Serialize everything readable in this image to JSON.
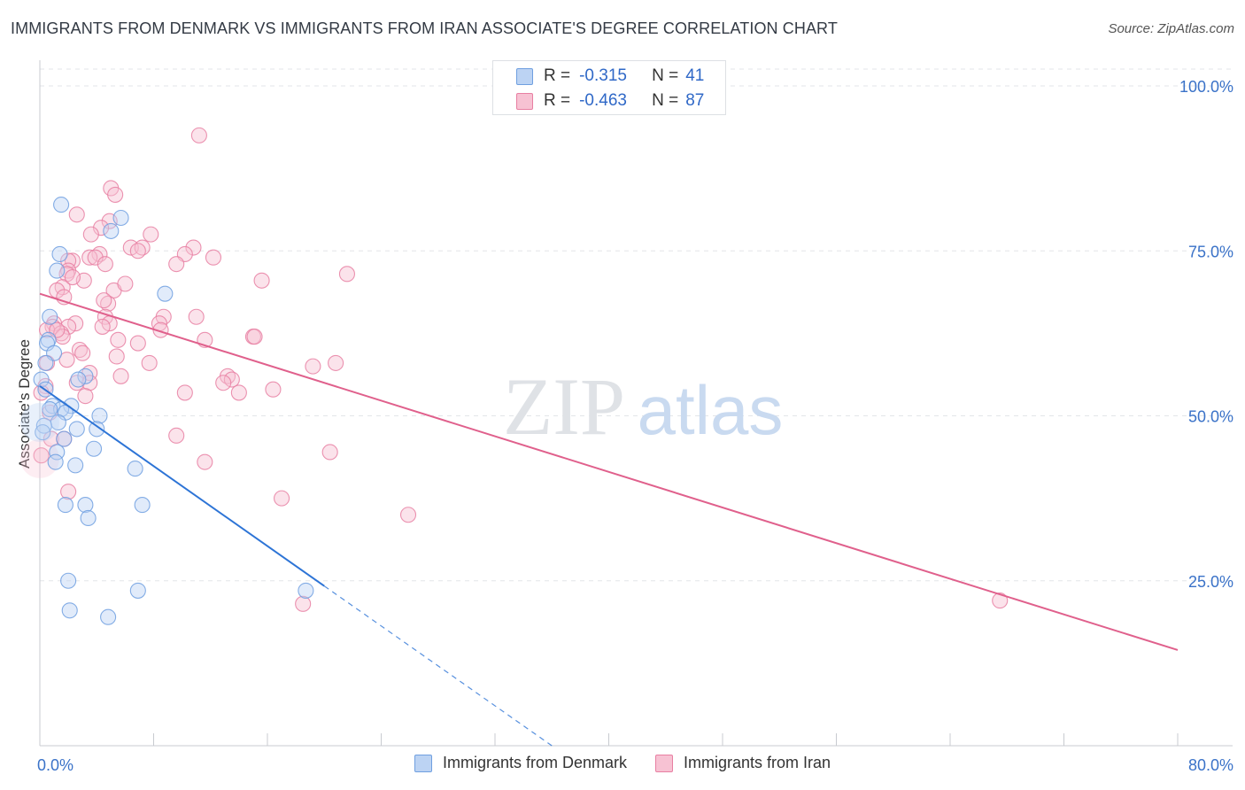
{
  "header": {
    "title": "IMMIGRANTS FROM DENMARK VS IMMIGRANTS FROM IRAN ASSOCIATE'S DEGREE CORRELATION CHART",
    "source": "Source: ZipAtlas.com"
  },
  "watermark": {
    "zip": "ZIP",
    "atlas": "atlas"
  },
  "legend_top": {
    "r_label": "R =",
    "n_label": "N =",
    "series": [
      {
        "r": "-0.315",
        "n": "41"
      },
      {
        "r": "-0.463",
        "n": "87"
      }
    ]
  },
  "legend_bottom": {
    "items": [
      "Immigrants from Denmark",
      "Immigrants from Iran"
    ]
  },
  "chart_data": {
    "type": "scatter",
    "title": "IMMIGRANTS FROM DENMARK VS IMMIGRANTS FROM IRAN ASSOCIATE'S DEGREE CORRELATION CHART",
    "xlabel": "",
    "ylabel": "Associate's Degree",
    "xlim": [
      0,
      80
    ],
    "ylim": [
      0,
      102
    ],
    "x_tick_labels": [
      "0.0%",
      "80.0%"
    ],
    "y_ticks": [
      25,
      50,
      75,
      100
    ],
    "y_tick_labels": [
      "25.0%",
      "50.0%",
      "75.0%",
      "100.0%"
    ],
    "grid": true,
    "legend_position": "top-center",
    "colors": {
      "denmark": "#6f9fe0",
      "denmark_fill": "#bcd3f3",
      "iran": "#e87fa2",
      "iran_fill": "#f7c2d3",
      "denmark_line": "#2d74d6",
      "iran_line": "#e0608c",
      "tick_label": "#3a72c8"
    },
    "series": [
      {
        "name": "Immigrants from Denmark",
        "r": -0.315,
        "n": 41,
        "trend": {
          "x0": 0,
          "y0": 54.5,
          "x1": 20,
          "y1": 24.2,
          "dashed_to_x": 36,
          "dashed_to_y": 0
        },
        "points": [
          [
            1.5,
            82.0
          ],
          [
            5.7,
            80.0
          ],
          [
            5.0,
            78.0
          ],
          [
            1.4,
            74.5
          ],
          [
            1.2,
            72.0
          ],
          [
            8.8,
            68.5
          ],
          [
            0.7,
            65.0
          ],
          [
            0.6,
            61.5
          ],
          [
            0.5,
            61.0
          ],
          [
            1.0,
            59.5
          ],
          [
            0.4,
            58.0
          ],
          [
            3.2,
            56.0
          ],
          [
            2.7,
            55.5
          ],
          [
            0.1,
            55.5
          ],
          [
            0.4,
            54.0
          ],
          [
            0.9,
            51.5
          ],
          [
            2.2,
            51.5
          ],
          [
            1.5,
            51.0
          ],
          [
            0.7,
            51.0
          ],
          [
            1.8,
            50.5
          ],
          [
            4.2,
            50.0
          ],
          [
            1.3,
            49.0
          ],
          [
            0.3,
            48.5
          ],
          [
            2.6,
            48.0
          ],
          [
            4.0,
            48.0
          ],
          [
            0.2,
            47.5
          ],
          [
            1.7,
            46.5
          ],
          [
            3.8,
            45.0
          ],
          [
            1.2,
            44.5
          ],
          [
            1.1,
            43.0
          ],
          [
            2.5,
            42.5
          ],
          [
            6.7,
            42.0
          ],
          [
            1.8,
            36.5
          ],
          [
            7.2,
            36.5
          ],
          [
            3.2,
            36.5
          ],
          [
            3.4,
            34.5
          ],
          [
            2.0,
            25.0
          ],
          [
            6.9,
            23.5
          ],
          [
            18.7,
            23.5
          ],
          [
            2.1,
            20.5
          ],
          [
            4.8,
            19.5
          ]
        ]
      },
      {
        "name": "Immigrants from Iran",
        "r": -0.463,
        "n": 87,
        "trend": {
          "x0": 0,
          "y0": 68.5,
          "x1": 80,
          "y1": 14.5
        },
        "points": [
          [
            11.2,
            92.5
          ],
          [
            5.0,
            84.5
          ],
          [
            5.3,
            83.5
          ],
          [
            2.6,
            80.5
          ],
          [
            4.9,
            79.5
          ],
          [
            4.3,
            78.5
          ],
          [
            3.6,
            77.5
          ],
          [
            7.8,
            77.5
          ],
          [
            6.4,
            75.5
          ],
          [
            7.2,
            75.5
          ],
          [
            10.8,
            75.5
          ],
          [
            6.9,
            75.0
          ],
          [
            4.2,
            74.5
          ],
          [
            10.2,
            74.5
          ],
          [
            3.5,
            74.0
          ],
          [
            3.9,
            74.0
          ],
          [
            12.2,
            74.0
          ],
          [
            2.3,
            73.5
          ],
          [
            2.0,
            73.5
          ],
          [
            4.6,
            73.0
          ],
          [
            9.6,
            73.0
          ],
          [
            2.0,
            72.0
          ],
          [
            1.9,
            71.5
          ],
          [
            21.6,
            71.5
          ],
          [
            3.1,
            70.5
          ],
          [
            15.6,
            70.5
          ],
          [
            1.6,
            69.5
          ],
          [
            1.2,
            69.0
          ],
          [
            5.2,
            69.0
          ],
          [
            1.7,
            68.0
          ],
          [
            4.8,
            67.0
          ],
          [
            4.6,
            65.0
          ],
          [
            8.7,
            65.0
          ],
          [
            11.0,
            65.0
          ],
          [
            1.0,
            64.0
          ],
          [
            2.5,
            64.0
          ],
          [
            4.9,
            64.0
          ],
          [
            2.0,
            63.5
          ],
          [
            8.4,
            64.0
          ],
          [
            0.9,
            63.5
          ],
          [
            4.4,
            63.5
          ],
          [
            0.5,
            63.0
          ],
          [
            1.5,
            62.5
          ],
          [
            1.6,
            62.0
          ],
          [
            8.5,
            63.0
          ],
          [
            5.5,
            61.5
          ],
          [
            11.6,
            61.5
          ],
          [
            15.0,
            62.0
          ],
          [
            15.1,
            62.0
          ],
          [
            6.9,
            61.0
          ],
          [
            2.8,
            60.0
          ],
          [
            3.0,
            59.5
          ],
          [
            5.4,
            59.0
          ],
          [
            1.9,
            58.5
          ],
          [
            7.7,
            58.0
          ],
          [
            0.5,
            58.0
          ],
          [
            19.2,
            57.5
          ],
          [
            20.8,
            58.0
          ],
          [
            3.5,
            56.5
          ],
          [
            5.7,
            56.0
          ],
          [
            13.2,
            56.0
          ],
          [
            13.5,
            55.5
          ],
          [
            2.6,
            55.0
          ],
          [
            12.9,
            55.0
          ],
          [
            3.5,
            55.0
          ],
          [
            0.4,
            54.5
          ],
          [
            16.4,
            54.0
          ],
          [
            0.1,
            53.5
          ],
          [
            10.2,
            53.5
          ],
          [
            14.0,
            53.5
          ],
          [
            3.2,
            53.0
          ],
          [
            0.7,
            50.5
          ],
          [
            9.6,
            47.0
          ],
          [
            0.8,
            46.5
          ],
          [
            1.7,
            46.5
          ],
          [
            20.4,
            44.5
          ],
          [
            0.1,
            44.0
          ],
          [
            11.6,
            43.0
          ],
          [
            2.0,
            38.5
          ],
          [
            17.0,
            37.5
          ],
          [
            25.9,
            35.0
          ],
          [
            18.5,
            21.5
          ],
          [
            67.5,
            22.0
          ],
          [
            1.2,
            63.0
          ],
          [
            2.3,
            71.0
          ],
          [
            4.5,
            67.5
          ],
          [
            6.0,
            70.0
          ]
        ]
      }
    ]
  }
}
